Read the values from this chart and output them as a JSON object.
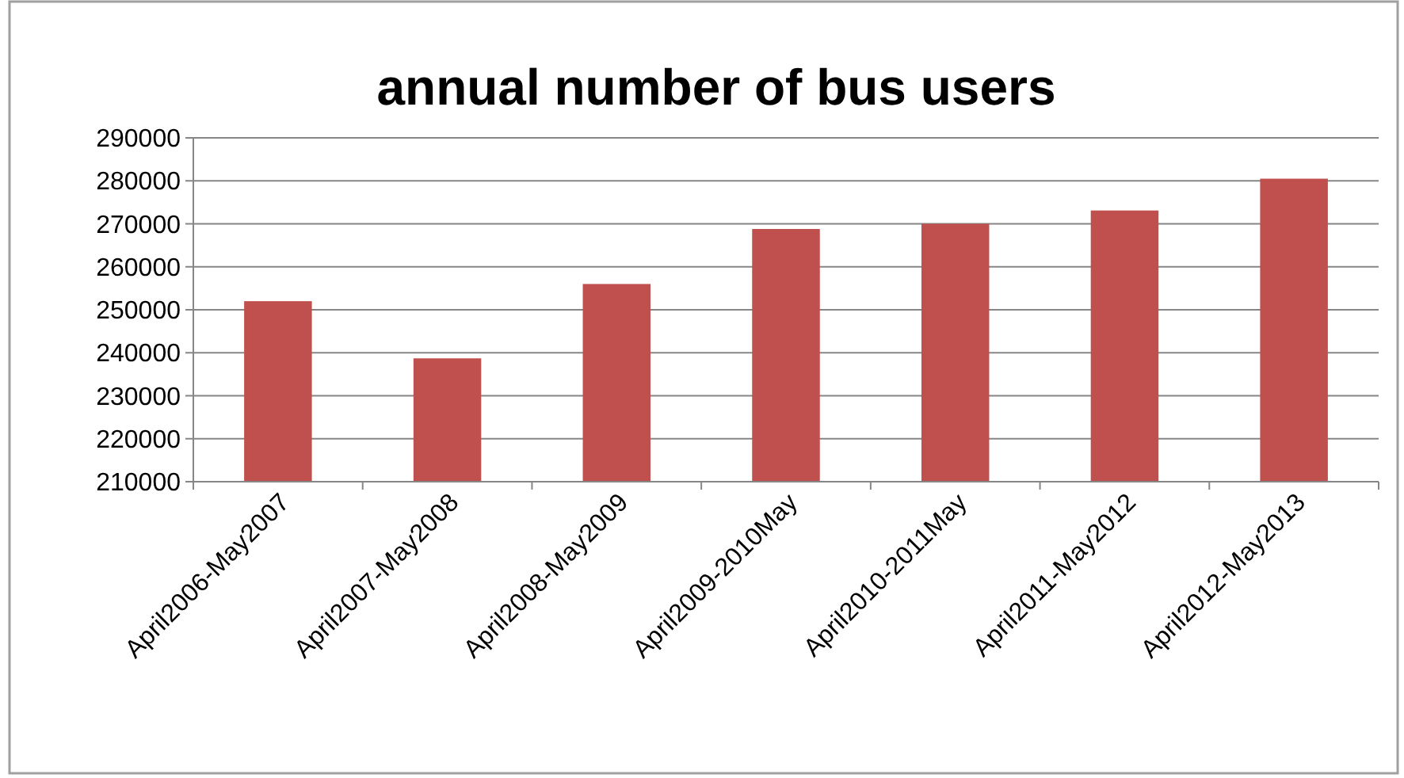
{
  "chart_data": {
    "type": "bar",
    "title": "annual number of bus users",
    "categories": [
      "April2006-May2007",
      "April2007-May2008",
      "April2008-May2009",
      "April2009-2010May",
      "April2010-2011May",
      "April2011-May2012",
      "April2012-May2013"
    ],
    "values": [
      252000,
      238700,
      256000,
      268800,
      270000,
      273100,
      280500
    ],
    "color": "#c0504d",
    "ylim": [
      210000,
      290000
    ],
    "yticks": [
      210000,
      220000,
      230000,
      240000,
      250000,
      260000,
      270000,
      280000,
      290000
    ],
    "grid": "y"
  }
}
